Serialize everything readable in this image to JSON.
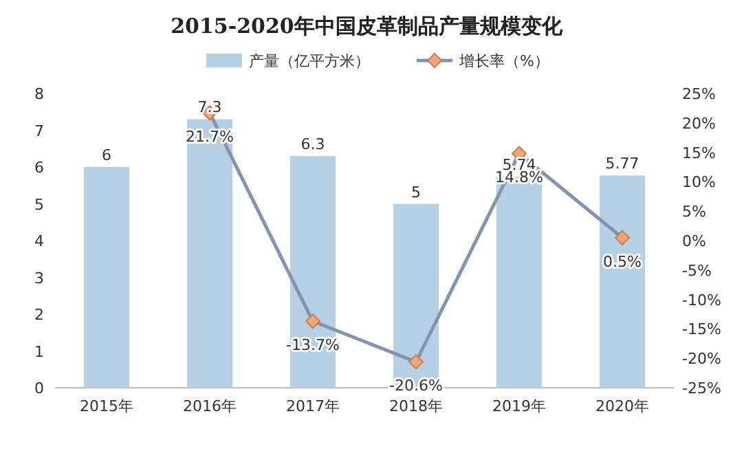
{
  "chart_data": {
    "type": "bar",
    "title": "2015-2020年中国皮革制品产量规模变化",
    "categories": [
      "2015年",
      "2016年",
      "2017年",
      "2018年",
      "2019年",
      "2020年"
    ],
    "series": [
      {
        "name": "产量（亿平方米）",
        "color": "#b7d0e4",
        "values": [
          6,
          7.3,
          6.3,
          5,
          5.74,
          5.77
        ]
      },
      {
        "name": "增长率（%）",
        "type": "line",
        "axis": "y2",
        "color": "#8394b0",
        "marker": "diamond",
        "values": [
          null,
          21.7,
          -13.7,
          -20.6,
          14.8,
          0.5
        ],
        "value_labels": [
          null,
          "21.7%",
          "-13.7%",
          "-20.6%",
          "14.8%",
          "0.5%"
        ]
      }
    ],
    "ylim": [
      0,
      8
    ],
    "yticks": [
      0,
      1,
      2,
      3,
      4,
      5,
      6,
      7,
      8
    ],
    "y2lim": [
      -25,
      25
    ],
    "y2ticks": [
      {
        "value": -25,
        "label": "-25%"
      },
      {
        "value": -20,
        "label": "-20%"
      },
      {
        "value": -15,
        "label": "-15%"
      },
      {
        "value": -10,
        "label": "-10%"
      },
      {
        "value": -5,
        "label": "-5%"
      },
      {
        "value": 0,
        "label": "0%"
      },
      {
        "value": 5,
        "label": "5%"
      },
      {
        "value": 10,
        "label": "10%"
      },
      {
        "value": 15,
        "label": "15%"
      },
      {
        "value": 20,
        "label": "20%"
      },
      {
        "value": 25,
        "label": "25%"
      }
    ],
    "data_labels": true,
    "legend": "top"
  }
}
